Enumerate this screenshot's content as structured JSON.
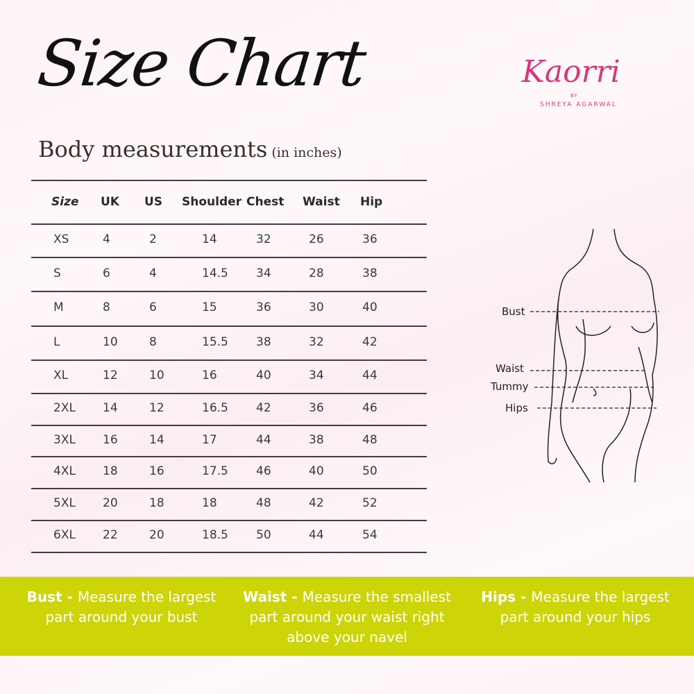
{
  "title": "Size Chart",
  "subtitle": "Body measurements",
  "subtitle_unit": "(in inches)",
  "logo": {
    "name": "Kaorri",
    "by": "BY",
    "designer": "SHREYA AGARWAL",
    "color": "#d8377b"
  },
  "table": {
    "headers": [
      "Size",
      "UK",
      "US",
      "Shoulder",
      "Chest",
      "Waist",
      "Hip"
    ],
    "rows": [
      [
        "XS",
        "4",
        "2",
        "14",
        "32",
        "26",
        "36"
      ],
      [
        "S",
        "6",
        "4",
        "14.5",
        "34",
        "28",
        "38"
      ],
      [
        "M",
        "8",
        "6",
        "15",
        "36",
        "30",
        "40"
      ],
      [
        "L",
        "10",
        "8",
        "15.5",
        "38",
        "32",
        "42"
      ],
      [
        "XL",
        "12",
        "10",
        "16",
        "40",
        "34",
        "44"
      ],
      [
        "2XL",
        "14",
        "12",
        "16.5",
        "42",
        "36",
        "46"
      ],
      [
        "3XL",
        "16",
        "14",
        "17",
        "44",
        "38",
        "48"
      ],
      [
        "4XL",
        "18",
        "16",
        "17.5",
        "46",
        "40",
        "50"
      ],
      [
        "5XL",
        "20",
        "18",
        "18",
        "48",
        "42",
        "52"
      ],
      [
        "6XL",
        "22",
        "20",
        "18.5",
        "50",
        "44",
        "54"
      ]
    ]
  },
  "figure_labels": {
    "bust": "Bust",
    "waist": "Waist",
    "tummy": "Tummy",
    "hips": "Hips"
  },
  "notes": [
    {
      "term": "Bust -",
      "text": "Measure the largest part around your bust"
    },
    {
      "term": "Waist -",
      "text": "Measure the smallest part around your waist right above your navel"
    },
    {
      "term": "Hips -",
      "text": "Measure the largest part around your hips"
    }
  ],
  "colors": {
    "band": "#cdd408",
    "brand": "#d8377b"
  }
}
